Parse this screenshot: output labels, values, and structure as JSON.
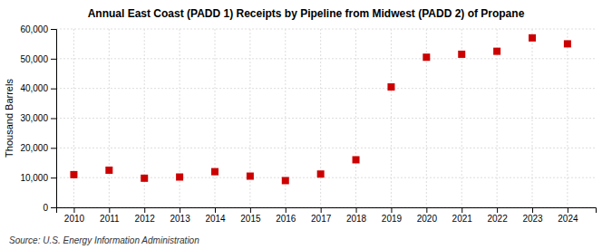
{
  "chart_data": {
    "type": "scatter",
    "title": "Annual East Coast (PADD 1) Receipts by Pipeline from Midwest (PADD 2) of Propane",
    "y_label": "Thousand Barrels",
    "annotations": [
      "Source: U.S. Energy Information Administration"
    ],
    "x": [
      2010,
      2011,
      2012,
      2013,
      2014,
      2015,
      2016,
      2017,
      2018,
      2019,
      2020,
      2021,
      2022,
      2023,
      2024
    ],
    "values": [
      11000,
      12500,
      9800,
      10200,
      12000,
      10500,
      9000,
      11200,
      16000,
      40500,
      50500,
      51500,
      52500,
      57000,
      55000
    ],
    "color": "#cc0000",
    "marker": "square",
    "grid": true,
    "xlim": [
      2009.5,
      2024.8
    ],
    "xticks": [
      2010,
      2011,
      2012,
      2013,
      2014,
      2015,
      2016,
      2017,
      2018,
      2019,
      2020,
      2021,
      2022,
      2023,
      2024
    ],
    "ylim": [
      0,
      60000
    ],
    "yticks": [
      0,
      {
        "value": 10000,
        "label": "10,000"
      },
      {
        "value": 20000,
        "label": "20,000"
      },
      {
        "value": 30000,
        "label": "30,000"
      },
      {
        "value": 40000,
        "label": "40,000"
      },
      {
        "value": 50000,
        "label": "50,000"
      },
      {
        "value": 60000,
        "label": "60,000"
      }
    ]
  }
}
